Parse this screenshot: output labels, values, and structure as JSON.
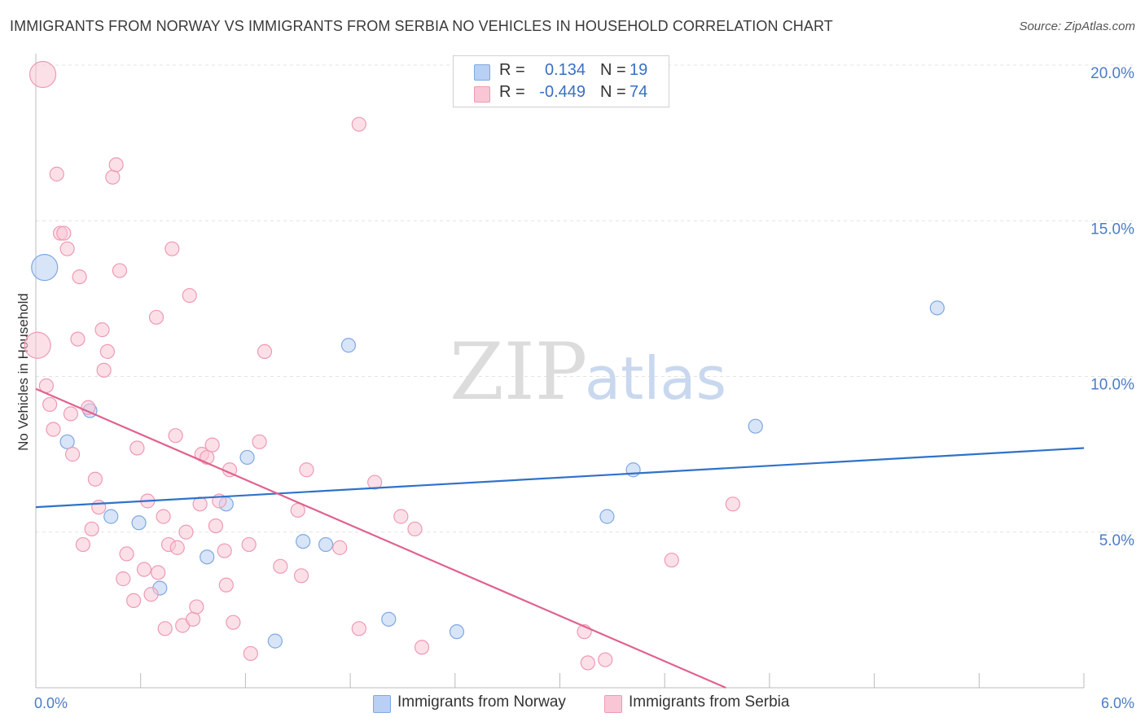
{
  "title": "IMMIGRANTS FROM NORWAY VS IMMIGRANTS FROM SERBIA NO VEHICLES IN HOUSEHOLD CORRELATION CHART",
  "source": "Source: ZipAtlas.com",
  "watermark": {
    "zip": "ZIP",
    "atlas": "atlas"
  },
  "colors": {
    "norway_fill": "#b8d0f3",
    "norway_stroke": "#7fa8e0",
    "norway_line": "#2f72c9",
    "serbia_fill": "#f9c6d5",
    "serbia_stroke": "#ee9ab4",
    "serbia_line": "#e0628f",
    "grid": "#e3e3e3",
    "tick_text": "#4a7cc7"
  },
  "stats": [
    {
      "r_label": "R =",
      "r_value": "0.134",
      "n_label": "N =",
      "n_value": "19",
      "series": "norway"
    },
    {
      "r_label": "R =",
      "r_value": "-0.449",
      "n_label": "N =",
      "n_value": "74",
      "series": "serbia"
    }
  ],
  "legend": [
    {
      "label": "Immigrants from Norway",
      "series": "norway"
    },
    {
      "label": "Immigrants from Serbia",
      "series": "serbia"
    }
  ],
  "chart_data": {
    "type": "scatter",
    "title": "IMMIGRANTS FROM NORWAY VS IMMIGRANTS FROM SERBIA NO VEHICLES IN HOUSEHOLD CORRELATION CHART",
    "xlabel": "",
    "ylabel": "No Vehicles in Household",
    "xlim": [
      0,
      6
    ],
    "ylim": [
      0,
      20
    ],
    "x_tick_labels": [
      {
        "value": 0,
        "label": "0.0%"
      },
      {
        "value": 6,
        "label": "6.0%"
      }
    ],
    "y_tick_labels": [
      {
        "value": 5,
        "label": "5.0%"
      },
      {
        "value": 10,
        "label": "10.0%"
      },
      {
        "value": 15,
        "label": "15.0%"
      },
      {
        "value": 20,
        "label": "20.0%"
      }
    ],
    "x_minor_ticks": [
      0.6,
      1.2,
      1.8,
      2.4,
      3.0,
      3.6,
      4.2,
      4.8,
      5.4,
      6.0
    ],
    "series": [
      {
        "name": "Immigrants from Norway",
        "key": "norway",
        "trend": {
          "x0": 0.0,
          "y0": 5.8,
          "x1": 6.0,
          "y1": 7.7
        },
        "points": [
          {
            "x": 0.05,
            "y": 13.5,
            "big": true
          },
          {
            "x": 0.18,
            "y": 7.9
          },
          {
            "x": 0.31,
            "y": 8.9
          },
          {
            "x": 0.43,
            "y": 5.5
          },
          {
            "x": 0.59,
            "y": 5.3
          },
          {
            "x": 0.71,
            "y": 3.2
          },
          {
            "x": 0.98,
            "y": 4.2
          },
          {
            "x": 1.09,
            "y": 5.9
          },
          {
            "x": 1.21,
            "y": 7.4
          },
          {
            "x": 1.37,
            "y": 1.5
          },
          {
            "x": 1.53,
            "y": 4.7
          },
          {
            "x": 1.66,
            "y": 4.6
          },
          {
            "x": 1.79,
            "y": 11.0
          },
          {
            "x": 2.02,
            "y": 2.2
          },
          {
            "x": 2.41,
            "y": 1.8
          },
          {
            "x": 3.27,
            "y": 5.5
          },
          {
            "x": 3.42,
            "y": 7.0
          },
          {
            "x": 4.12,
            "y": 8.4
          },
          {
            "x": 5.16,
            "y": 12.2
          }
        ]
      },
      {
        "name": "Immigrants from Serbia",
        "key": "serbia",
        "trend": {
          "x0": 0.0,
          "y0": 9.6,
          "x1": 3.95,
          "y1": 0.0
        },
        "points": [
          {
            "x": 0.04,
            "y": 19.7,
            "big": true
          },
          {
            "x": 0.01,
            "y": 11.0,
            "big": true
          },
          {
            "x": 0.06,
            "y": 9.7
          },
          {
            "x": 0.08,
            "y": 9.1
          },
          {
            "x": 0.1,
            "y": 8.3
          },
          {
            "x": 0.12,
            "y": 16.5
          },
          {
            "x": 0.14,
            "y": 14.6
          },
          {
            "x": 0.16,
            "y": 14.6
          },
          {
            "x": 0.18,
            "y": 14.1
          },
          {
            "x": 0.2,
            "y": 8.8
          },
          {
            "x": 0.21,
            "y": 7.5
          },
          {
            "x": 0.24,
            "y": 11.2
          },
          {
            "x": 0.25,
            "y": 13.2
          },
          {
            "x": 0.27,
            "y": 4.6
          },
          {
            "x": 0.3,
            "y": 9.0
          },
          {
            "x": 0.32,
            "y": 5.1
          },
          {
            "x": 0.34,
            "y": 6.7
          },
          {
            "x": 0.36,
            "y": 5.8
          },
          {
            "x": 0.38,
            "y": 11.5
          },
          {
            "x": 0.39,
            "y": 10.2
          },
          {
            "x": 0.41,
            "y": 10.8
          },
          {
            "x": 0.44,
            "y": 16.4
          },
          {
            "x": 0.46,
            "y": 16.8
          },
          {
            "x": 0.48,
            "y": 13.4
          },
          {
            "x": 0.5,
            "y": 3.5
          },
          {
            "x": 0.52,
            "y": 4.3
          },
          {
            "x": 0.56,
            "y": 2.8
          },
          {
            "x": 0.58,
            "y": 7.7
          },
          {
            "x": 0.62,
            "y": 3.8
          },
          {
            "x": 0.64,
            "y": 6.0
          },
          {
            "x": 0.66,
            "y": 3.0
          },
          {
            "x": 0.69,
            "y": 11.9
          },
          {
            "x": 0.7,
            "y": 3.7
          },
          {
            "x": 0.73,
            "y": 5.5
          },
          {
            "x": 0.74,
            "y": 1.9
          },
          {
            "x": 0.76,
            "y": 4.6
          },
          {
            "x": 0.78,
            "y": 14.1
          },
          {
            "x": 0.8,
            "y": 8.1
          },
          {
            "x": 0.81,
            "y": 4.5
          },
          {
            "x": 0.84,
            "y": 2.0
          },
          {
            "x": 0.86,
            "y": 5.0
          },
          {
            "x": 0.88,
            "y": 12.6
          },
          {
            "x": 0.9,
            "y": 2.2
          },
          {
            "x": 0.92,
            "y": 2.6
          },
          {
            "x": 0.94,
            "y": 5.9
          },
          {
            "x": 0.95,
            "y": 7.5
          },
          {
            "x": 0.98,
            "y": 7.4
          },
          {
            "x": 1.01,
            "y": 7.8
          },
          {
            "x": 1.03,
            "y": 5.2
          },
          {
            "x": 1.05,
            "y": 6.0
          },
          {
            "x": 1.08,
            "y": 4.4
          },
          {
            "x": 1.09,
            "y": 3.3
          },
          {
            "x": 1.11,
            "y": 7.0
          },
          {
            "x": 1.13,
            "y": 2.1
          },
          {
            "x": 1.22,
            "y": 4.6
          },
          {
            "x": 1.23,
            "y": 1.1
          },
          {
            "x": 1.28,
            "y": 7.9
          },
          {
            "x": 1.31,
            "y": 10.8
          },
          {
            "x": 1.4,
            "y": 3.9
          },
          {
            "x": 1.5,
            "y": 5.7
          },
          {
            "x": 1.52,
            "y": 3.6
          },
          {
            "x": 1.55,
            "y": 7.0
          },
          {
            "x": 1.74,
            "y": 4.5
          },
          {
            "x": 1.85,
            "y": 1.9
          },
          {
            "x": 1.85,
            "y": 18.1
          },
          {
            "x": 1.94,
            "y": 6.6
          },
          {
            "x": 2.09,
            "y": 5.5
          },
          {
            "x": 2.17,
            "y": 5.1
          },
          {
            "x": 2.21,
            "y": 1.3
          },
          {
            "x": 3.16,
            "y": 0.8
          },
          {
            "x": 3.14,
            "y": 1.8
          },
          {
            "x": 3.26,
            "y": 0.9
          },
          {
            "x": 3.64,
            "y": 4.1
          },
          {
            "x": 3.99,
            "y": 5.9
          }
        ]
      }
    ]
  }
}
